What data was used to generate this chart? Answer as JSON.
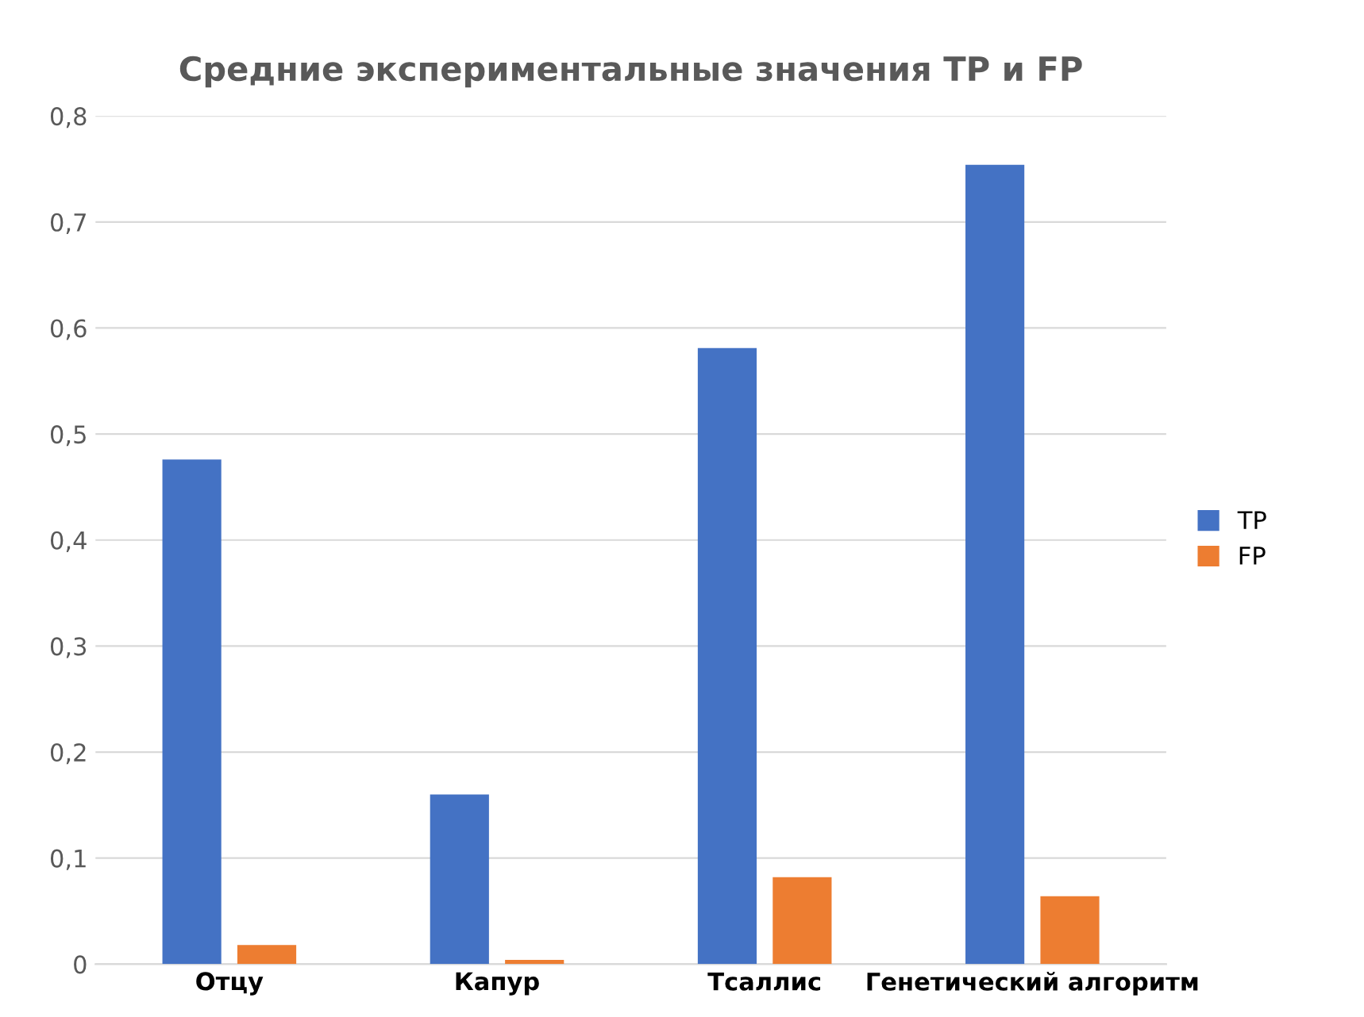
{
  "chart_data": {
    "type": "bar",
    "title": "Средние экспериментальные значения TP и FP",
    "categories": [
      "Отцу",
      "Капур",
      "Тсаллис",
      "Генетический алгоритм"
    ],
    "series": [
      {
        "name": "TP",
        "color": "#4472c4",
        "values": [
          0.476,
          0.16,
          0.581,
          0.754
        ]
      },
      {
        "name": "FP",
        "color": "#ed7d31",
        "values": [
          0.018,
          0.004,
          0.082,
          0.064
        ]
      }
    ],
    "ylim": [
      0,
      0.8
    ],
    "yticks": [
      0,
      {
        "value": 0.1,
        "label": "0,1"
      },
      {
        "value": 0.2,
        "label": "0,2"
      },
      {
        "value": 0.3,
        "label": "0,3"
      },
      {
        "value": 0.4,
        "label": "0,4"
      },
      {
        "value": 0.5,
        "label": "0,5"
      },
      {
        "value": 0.6,
        "label": "0,6"
      },
      {
        "value": 0.7,
        "label": "0,7"
      },
      {
        "value": 0.8,
        "label": "0,8"
      }
    ],
    "grid": "y",
    "legend": "right"
  }
}
